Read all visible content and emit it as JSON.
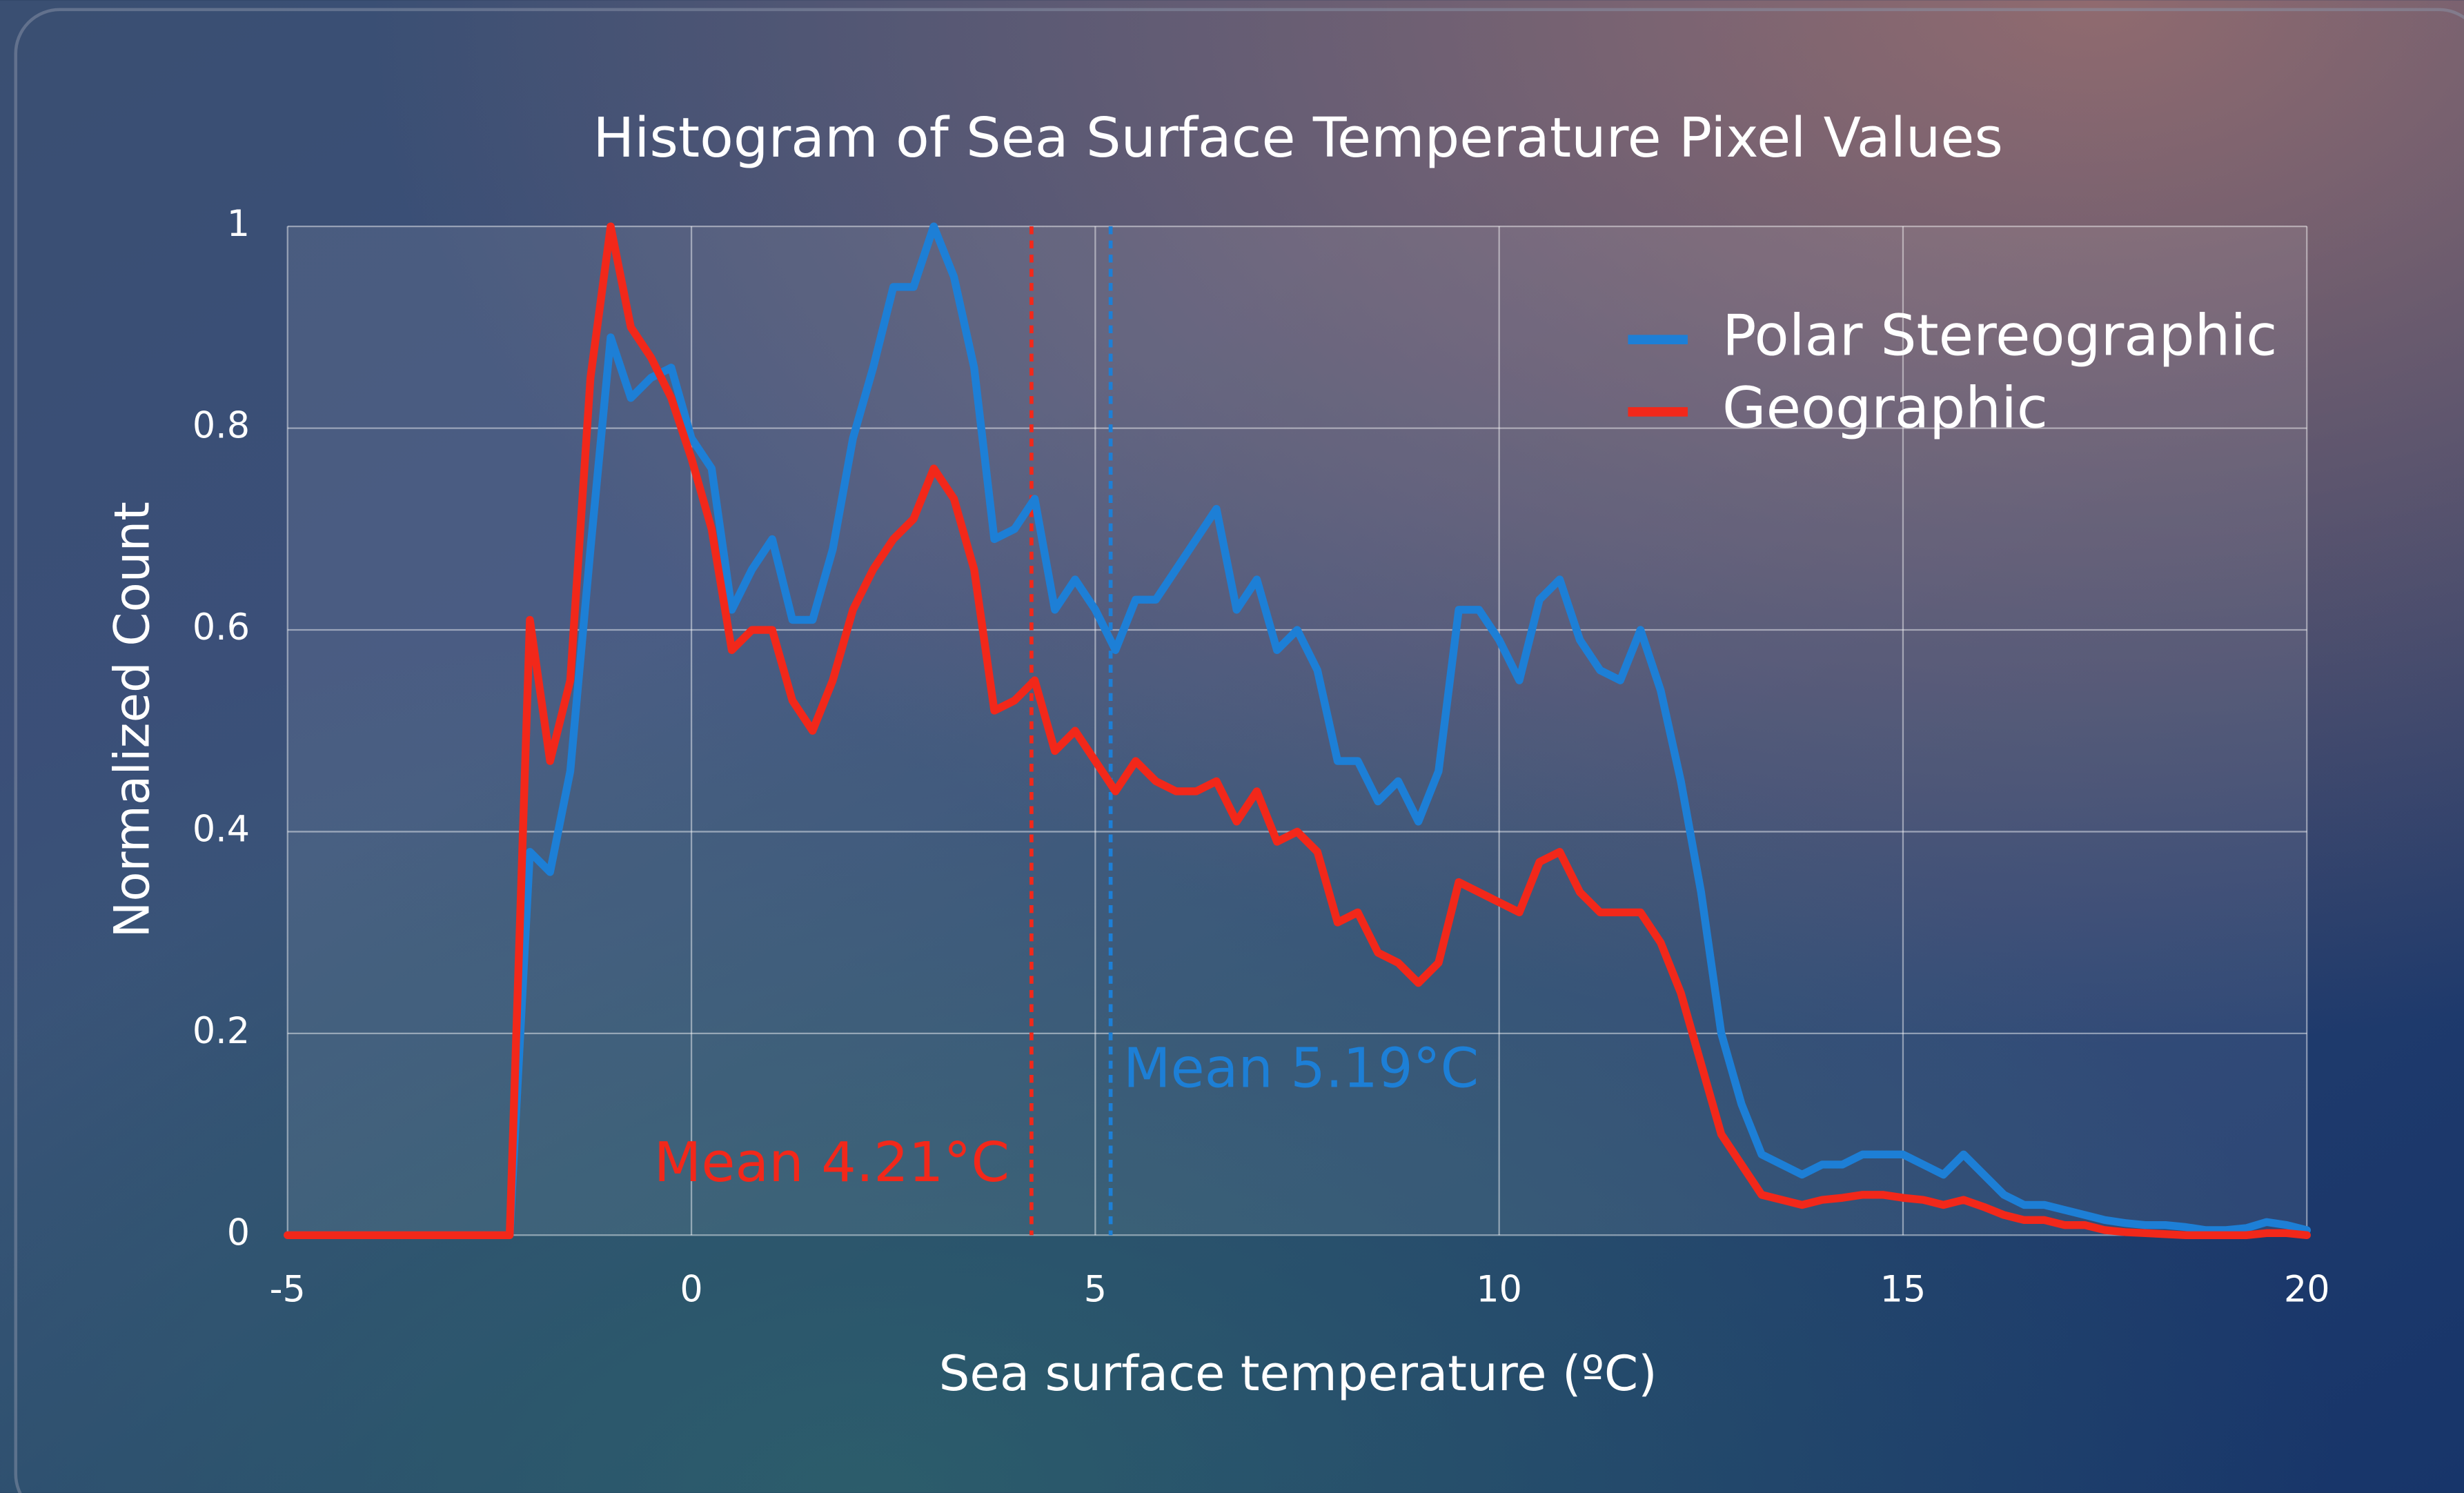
{
  "chart_data": {
    "type": "line",
    "title": "Histogram of Sea Surface Temperature Pixel Values",
    "x_label": "Sea surface temperature (ºC)",
    "y_label": "Normalized Count",
    "x": [
      -5,
      -2.25,
      -2,
      -1.75,
      -1.5,
      -1.25,
      -1,
      -0.75,
      -0.5,
      -0.25,
      0,
      0.25,
      0.5,
      0.75,
      1,
      1.25,
      1.5,
      1.75,
      2,
      2.25,
      2.5,
      2.75,
      3,
      3.25,
      3.5,
      3.75,
      4,
      4.25,
      4.5,
      4.75,
      5,
      5.25,
      5.5,
      5.75,
      6,
      6.25,
      6.5,
      6.75,
      7,
      7.25,
      7.5,
      7.75,
      8,
      8.25,
      8.5,
      8.75,
      9,
      9.25,
      9.5,
      9.75,
      10,
      10.25,
      10.5,
      10.75,
      11,
      11.25,
      11.5,
      11.75,
      12,
      12.25,
      12.5,
      12.75,
      13,
      13.25,
      13.5,
      13.75,
      14,
      14.25,
      14.5,
      14.75,
      15,
      15.25,
      15.5,
      15.75,
      16,
      16.25,
      16.5,
      16.75,
      17,
      17.25,
      17.5,
      17.75,
      18,
      18.25,
      18.5,
      18.75,
      19,
      19.25,
      19.5,
      19.75,
      20
    ],
    "series": [
      {
        "name": "Polar Stereographic",
        "color": "#1d7fd6",
        "values": [
          0,
          0,
          0.38,
          0.36,
          0.46,
          0.68,
          0.89,
          0.83,
          0.85,
          0.86,
          0.79,
          0.76,
          0.62,
          0.66,
          0.69,
          0.61,
          0.61,
          0.68,
          0.79,
          0.86,
          0.94,
          0.94,
          1.0,
          0.95,
          0.86,
          0.69,
          0.7,
          0.73,
          0.62,
          0.65,
          0.62,
          0.58,
          0.63,
          0.63,
          0.66,
          0.69,
          0.72,
          0.62,
          0.65,
          0.58,
          0.6,
          0.56,
          0.47,
          0.47,
          0.43,
          0.45,
          0.41,
          0.46,
          0.62,
          0.62,
          0.59,
          0.55,
          0.63,
          0.65,
          0.59,
          0.56,
          0.55,
          0.6,
          0.54,
          0.45,
          0.34,
          0.2,
          0.13,
          0.08,
          0.07,
          0.06,
          0.07,
          0.07,
          0.08,
          0.08,
          0.08,
          0.07,
          0.06,
          0.08,
          0.06,
          0.04,
          0.03,
          0.03,
          0.025,
          0.02,
          0.015,
          0.012,
          0.01,
          0.01,
          0.008,
          0.005,
          0.005,
          0.007,
          0.013,
          0.01,
          0.005
        ]
      },
      {
        "name": "Geographic",
        "color": "#f2281a",
        "values": [
          0,
          0,
          0.61,
          0.47,
          0.55,
          0.85,
          1.0,
          0.9,
          0.87,
          0.83,
          0.77,
          0.7,
          0.58,
          0.6,
          0.6,
          0.53,
          0.5,
          0.55,
          0.62,
          0.66,
          0.69,
          0.71,
          0.76,
          0.73,
          0.66,
          0.52,
          0.53,
          0.55,
          0.48,
          0.5,
          0.47,
          0.44,
          0.47,
          0.45,
          0.44,
          0.44,
          0.45,
          0.41,
          0.44,
          0.39,
          0.4,
          0.38,
          0.31,
          0.32,
          0.28,
          0.27,
          0.25,
          0.27,
          0.35,
          0.34,
          0.33,
          0.32,
          0.37,
          0.38,
          0.34,
          0.32,
          0.32,
          0.32,
          0.29,
          0.24,
          0.17,
          0.1,
          0.07,
          0.04,
          0.035,
          0.03,
          0.035,
          0.037,
          0.04,
          0.04,
          0.037,
          0.035,
          0.03,
          0.035,
          0.028,
          0.02,
          0.015,
          0.015,
          0.01,
          0.01,
          0.005,
          0.003,
          0.002,
          0.001,
          0,
          0,
          0,
          0,
          0.002,
          0.002,
          0
        ]
      }
    ],
    "mean_lines": [
      {
        "label": "Mean 4.21°C",
        "value": 4.21,
        "color": "#f2281a"
      },
      {
        "label": "Mean 5.19°C",
        "value": 5.19,
        "color": "#1d7fd6"
      }
    ],
    "xlim": [
      -5,
      20
    ],
    "xticks": [
      -5,
      0,
      5,
      10,
      15,
      20
    ],
    "ylim": [
      0,
      1
    ],
    "yticks": [
      0,
      0.2,
      0.4,
      0.6,
      0.8,
      1
    ],
    "grid": true,
    "legend": "upper right"
  }
}
